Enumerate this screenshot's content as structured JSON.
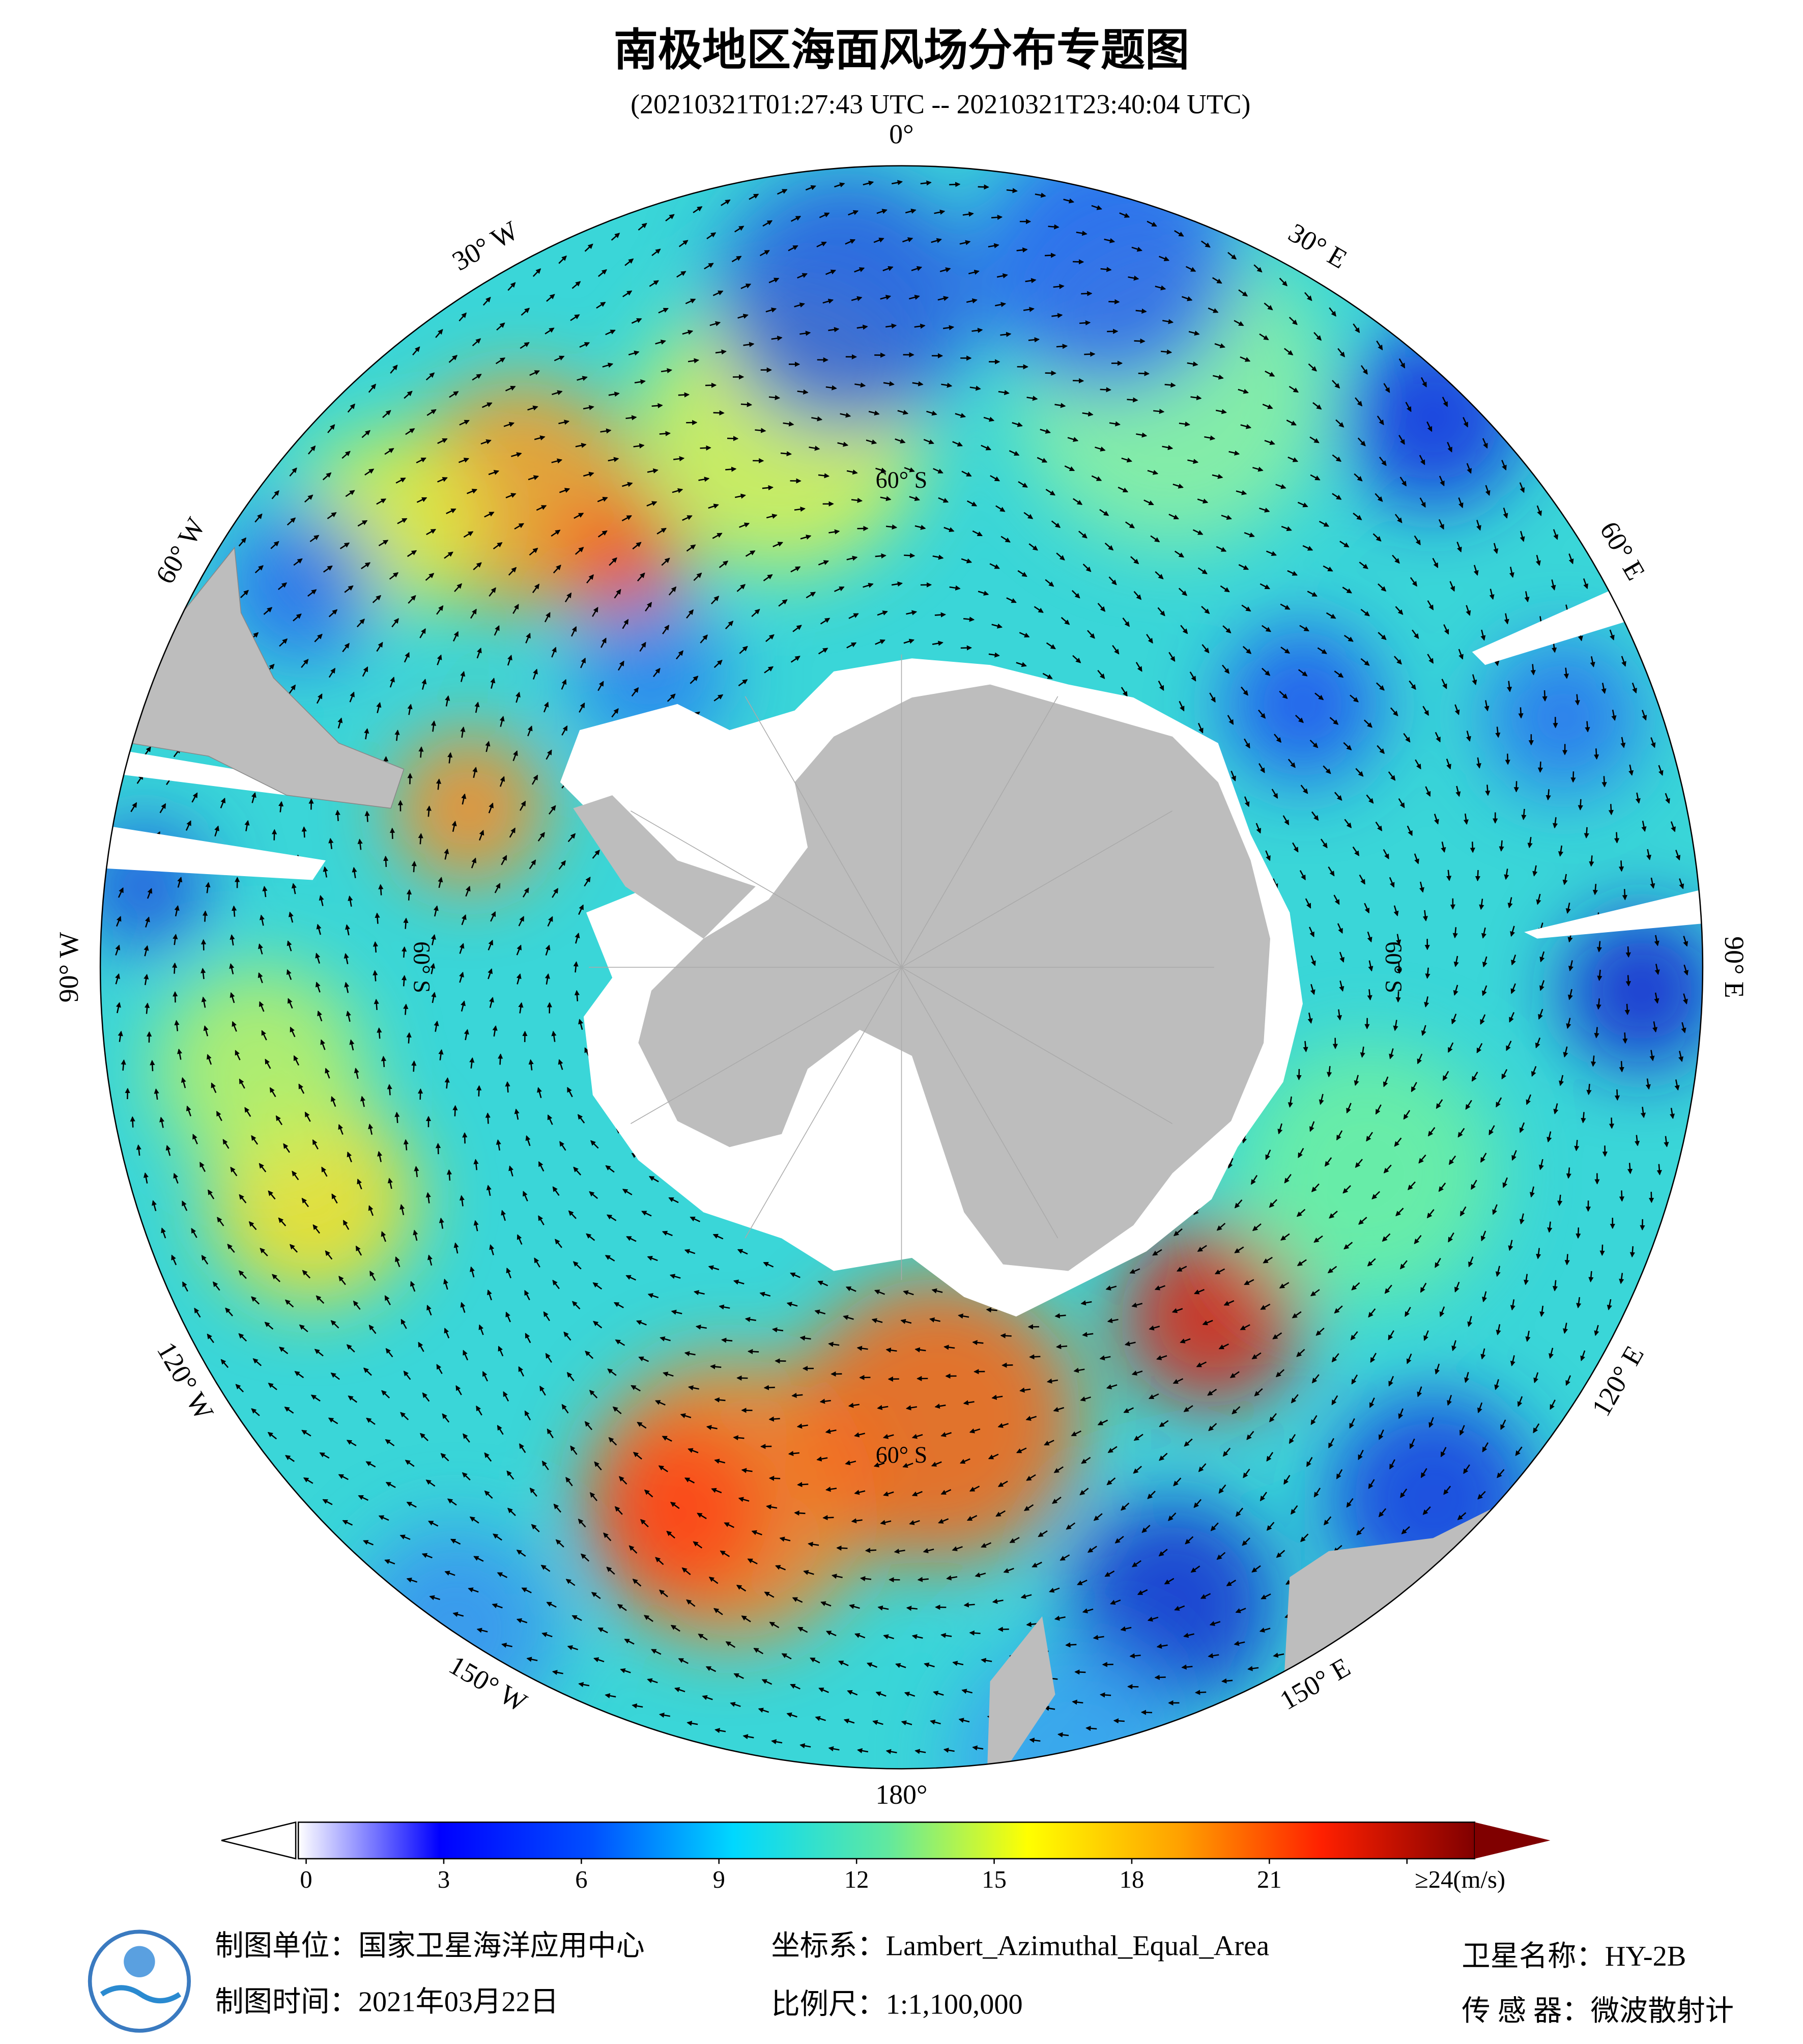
{
  "header": {
    "title": "南极地区海面风场分布专题图",
    "subtitle": "(20210321T01:27:43 UTC -- 20210321T23:40:04 UTC)"
  },
  "map": {
    "longitude_labels": [
      "0°",
      "30° E",
      "60° E",
      "90° E",
      "120° E",
      "150° E",
      "180°",
      "150° W",
      "120° W",
      "90° W",
      "60° W",
      "30° W"
    ],
    "latitude_labels": [
      "60° S",
      "60° S",
      "60° S",
      "60° S"
    ]
  },
  "colorbar": {
    "range": [
      0,
      24
    ],
    "ticks": [
      0,
      3,
      6,
      9,
      12,
      15,
      18,
      21,
      {
        "value": 24,
        "label": "≥24(m/s)"
      }
    ]
  },
  "footer": {
    "producer": "制图单位：国家卫星海洋应用中心",
    "date": "制图时间：2021年03月22日",
    "projection": "坐标系：Lambert_Azimuthal_Equal_Area",
    "scale": "比例尺：1:1,100,000",
    "satellite": "卫星名称：HY-2B",
    "sensor": "传 感 器：微波散射计"
  }
}
